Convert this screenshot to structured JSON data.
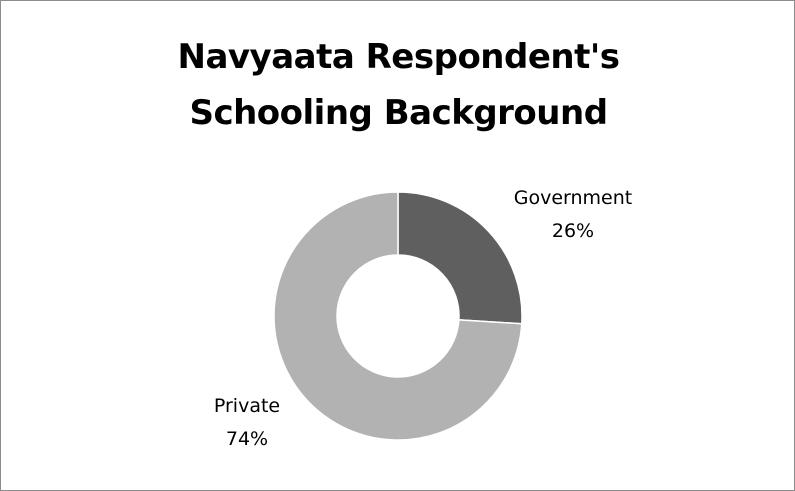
{
  "chart_data": {
    "type": "pie",
    "variant": "donut",
    "title": "Navyaata Respondent's Schooling Background",
    "title_lines": [
      "Navyaata Respondent's",
      "Schooling Background"
    ],
    "categories": [
      "Government",
      "Private"
    ],
    "values": [
      26,
      74
    ],
    "value_labels": [
      "26%",
      "74%"
    ],
    "colors": [
      "#5f5f5f",
      "#b2b2b2"
    ],
    "legend": "none",
    "grid": false
  }
}
